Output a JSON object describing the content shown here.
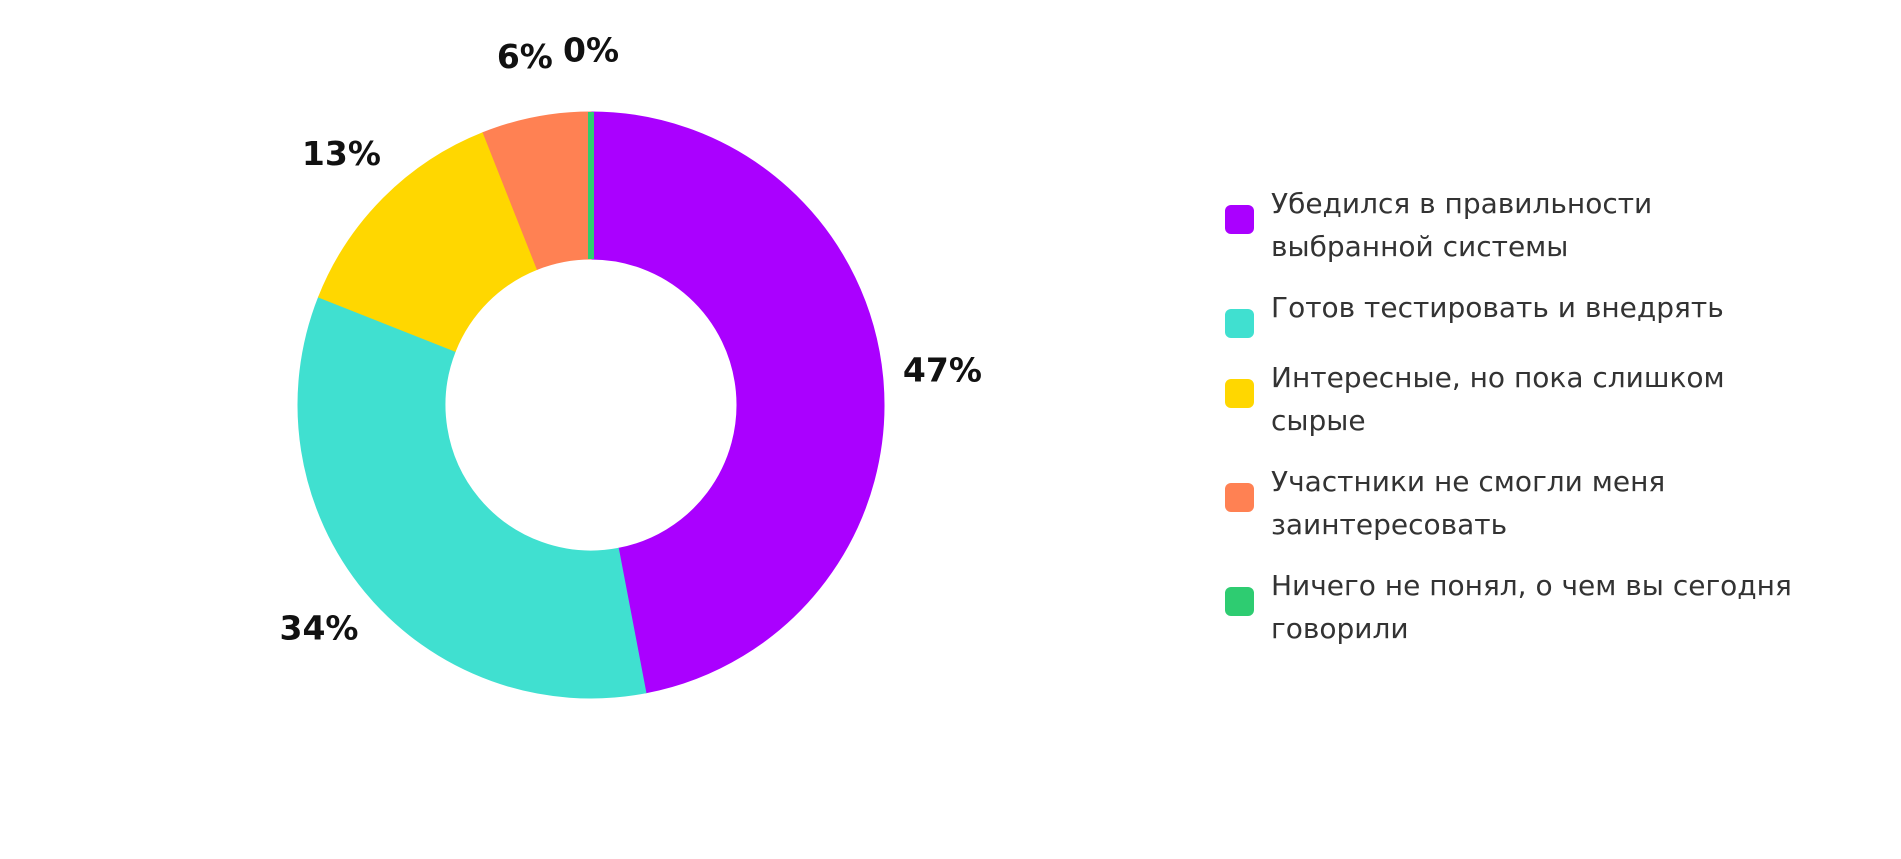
{
  "chart_data": {
    "type": "pie",
    "categories": [
      "Убедился в правильности выбранной системы",
      "Готов тестировать и внедрять",
      "Интересные, но пока слишком сырые",
      "Участники не смогли меня заинтересовать",
      "Ничего не понял, о чем вы сегодня говорили"
    ],
    "values": [
      47,
      34,
      13,
      6,
      0
    ],
    "value_labels": [
      "47%",
      "34%",
      "13%",
      "6%",
      "0%"
    ],
    "colors": [
      "#aa00ff",
      "#40e0d0",
      "#ffd700",
      "#ff8153",
      "#2ecc71"
    ],
    "donut": true,
    "legend": "right"
  }
}
